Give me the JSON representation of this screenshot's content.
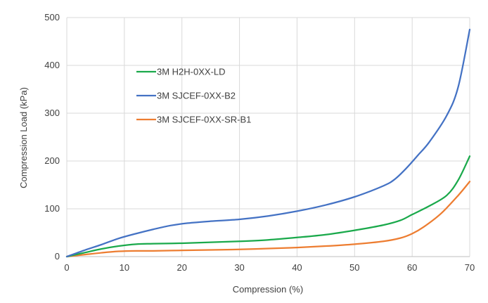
{
  "chart_data": {
    "type": "line",
    "title": "",
    "xlabel": "Compression (%)",
    "ylabel": "Compression Load (kPa)",
    "xlim": [
      0,
      70
    ],
    "ylim": [
      0,
      500
    ],
    "x_ticks": [
      0,
      10,
      20,
      30,
      40,
      50,
      60,
      70
    ],
    "y_ticks": [
      0,
      100,
      200,
      300,
      400,
      500
    ],
    "grid": true,
    "legend_position": "upper-left inside plot",
    "series": [
      {
        "name": "3M H2H-0XX-LD",
        "color": "#1aa94b",
        "points": [
          [
            0,
            0
          ],
          [
            3,
            8
          ],
          [
            6,
            16
          ],
          [
            9,
            22
          ],
          [
            12,
            26
          ],
          [
            15,
            27
          ],
          [
            20,
            28
          ],
          [
            25,
            30
          ],
          [
            30,
            32
          ],
          [
            35,
            35
          ],
          [
            40,
            40
          ],
          [
            45,
            46
          ],
          [
            50,
            55
          ],
          [
            55,
            66
          ],
          [
            58,
            76
          ],
          [
            60,
            88
          ],
          [
            63,
            106
          ],
          [
            66,
            128
          ],
          [
            68,
            160
          ],
          [
            70,
            210
          ]
        ]
      },
      {
        "name": "3M SJCEF-0XX-B2",
        "color": "#4472c4",
        "points": [
          [
            0,
            0
          ],
          [
            3,
            13
          ],
          [
            6,
            25
          ],
          [
            9,
            38
          ],
          [
            12,
            48
          ],
          [
            15,
            57
          ],
          [
            18,
            65
          ],
          [
            21,
            70
          ],
          [
            25,
            74
          ],
          [
            30,
            78
          ],
          [
            35,
            85
          ],
          [
            40,
            95
          ],
          [
            45,
            108
          ],
          [
            50,
            125
          ],
          [
            55,
            148
          ],
          [
            57,
            162
          ],
          [
            59,
            185
          ],
          [
            61,
            212
          ],
          [
            63,
            240
          ],
          [
            66,
            295
          ],
          [
            68,
            355
          ],
          [
            70,
            475
          ]
        ]
      },
      {
        "name": "3M SJCEF-0XX-SR-B1",
        "color": "#ed7d31",
        "points": [
          [
            0,
            0
          ],
          [
            3,
            4
          ],
          [
            6,
            8
          ],
          [
            9,
            11
          ],
          [
            12,
            12
          ],
          [
            15,
            12
          ],
          [
            20,
            13
          ],
          [
            25,
            14
          ],
          [
            30,
            15
          ],
          [
            35,
            17
          ],
          [
            40,
            19
          ],
          [
            45,
            22
          ],
          [
            50,
            26
          ],
          [
            55,
            32
          ],
          [
            58,
            39
          ],
          [
            60,
            48
          ],
          [
            62,
            62
          ],
          [
            65,
            90
          ],
          [
            68,
            128
          ],
          [
            70,
            157
          ]
        ]
      }
    ]
  }
}
